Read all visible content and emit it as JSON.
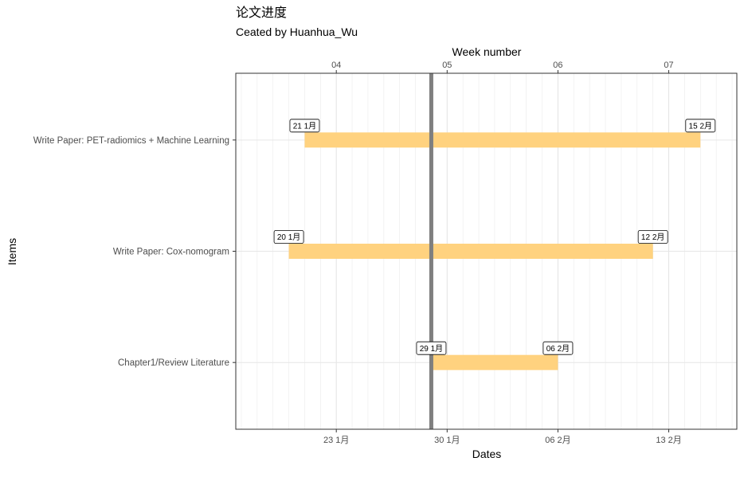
{
  "chart_data": {
    "type": "gantt",
    "title": "论文进度",
    "subtitle": "Ceated by Huanhua_Wu",
    "xlabel": "Dates",
    "ylabel": "Items",
    "x2label": "Week number",
    "xlim": [
      "2021-01-17",
      "2021-02-17"
    ],
    "date_ticks": [
      {
        "date": "2021-01-23",
        "label": "23 1月"
      },
      {
        "date": "2021-01-30",
        "label": "30 1月"
      },
      {
        "date": "2021-02-06",
        "label": "06 2月"
      },
      {
        "date": "2021-02-13",
        "label": "13 2月"
      }
    ],
    "week_ticks": [
      {
        "date": "2021-01-23",
        "label": "04"
      },
      {
        "date": "2021-01-30",
        "label": "05"
      },
      {
        "date": "2021-02-06",
        "label": "06"
      },
      {
        "date": "2021-02-13",
        "label": "07"
      }
    ],
    "today": "2021-01-29",
    "bar_color": "#ffd27f",
    "today_color": "#7f7f7f",
    "tasks": [
      {
        "name": "Write Paper: PET-radiomics + Machine Learning",
        "start": "2021-01-21",
        "end": "2021-02-15",
        "start_label": "21 1月",
        "end_label": "15 2月"
      },
      {
        "name": "Write Paper: Cox-nomogram",
        "start": "2021-01-20",
        "end": "2021-02-12",
        "start_label": "20 1月",
        "end_label": "12 2月"
      },
      {
        "name": "Chapter1/Review Literature",
        "start": "2021-01-29",
        "end": "2021-02-06",
        "start_label": "29 1月",
        "end_label": "06 2月"
      }
    ]
  }
}
